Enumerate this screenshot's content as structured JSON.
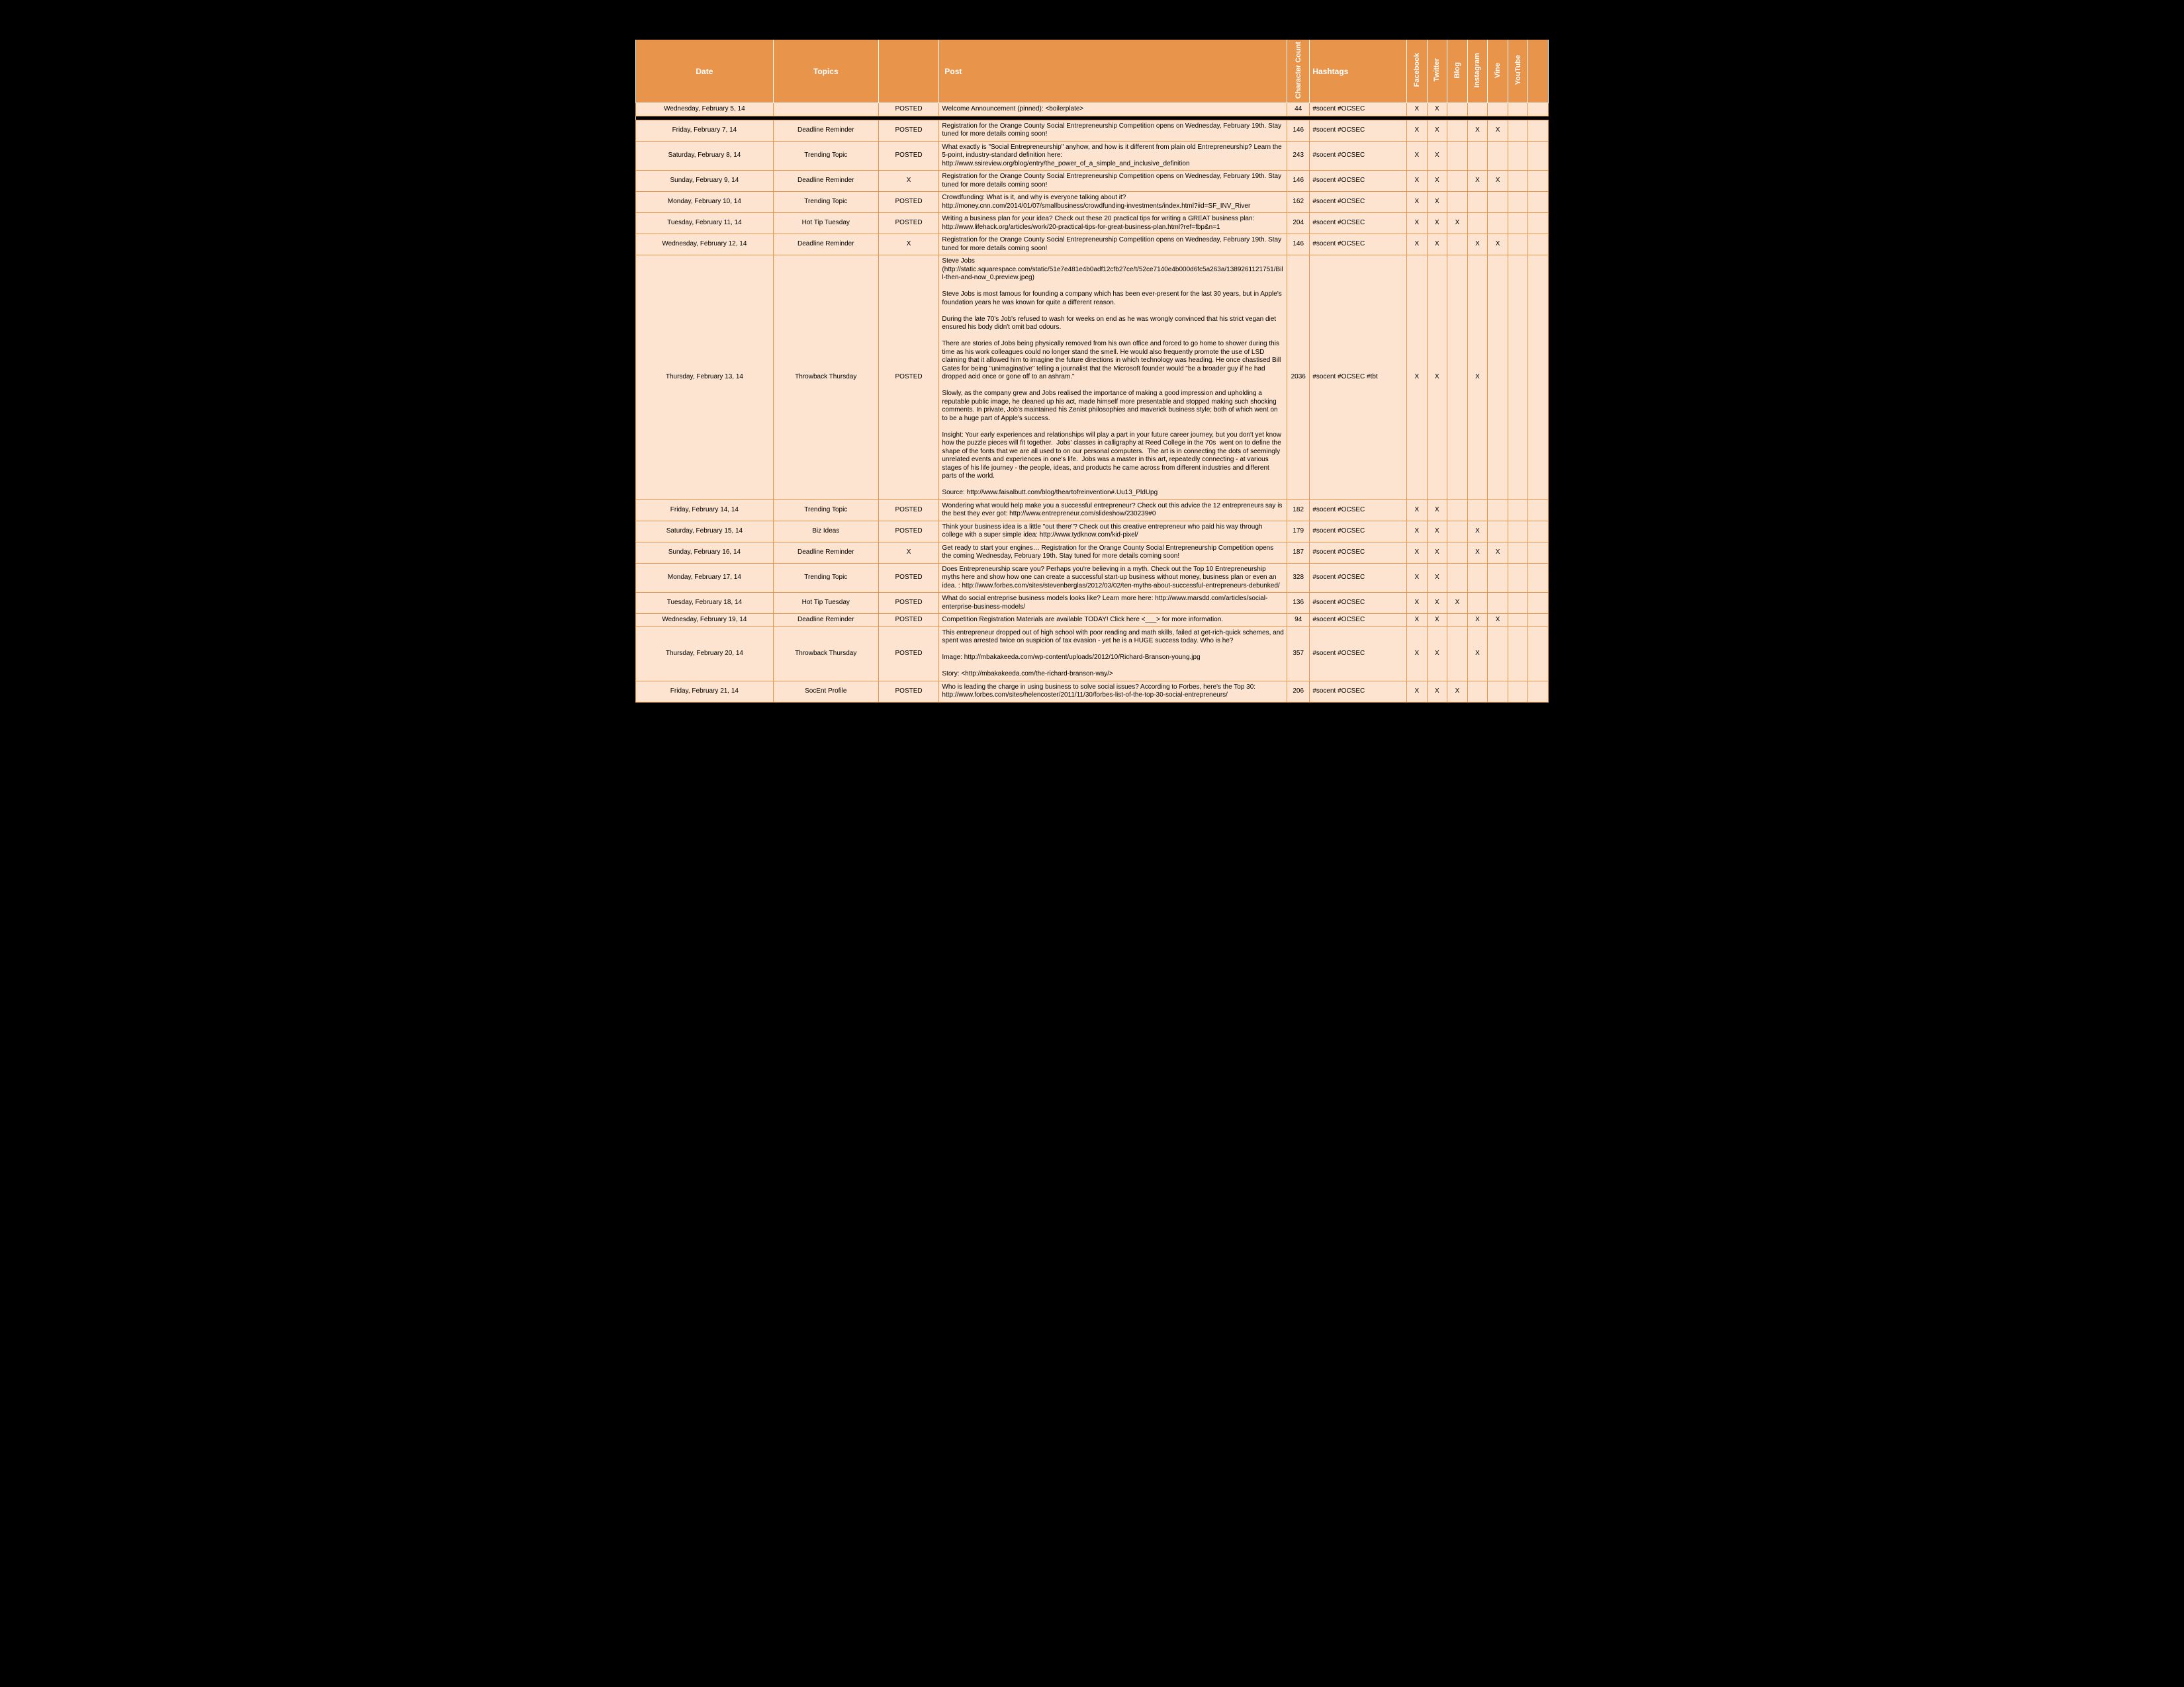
{
  "columns": {
    "date": "Date",
    "topics": "Topics",
    "status": "",
    "post": "Post",
    "cc": "Character Count",
    "hashtags": "Hashtags",
    "channels": [
      "Facebook",
      "Twitter",
      "Blog",
      "Instagram",
      "Vine",
      "YouTube"
    ]
  },
  "rows": [
    {
      "date": "Wednesday, February 5, 14",
      "topic": "",
      "status": "POSTED",
      "post": "Welcome Announcement (pinned): <boilerplate>",
      "cc": "44",
      "hash": "#socent #OCSEC",
      "ch": [
        "X",
        "X",
        "",
        "",
        "",
        ""
      ]
    },
    {
      "sep": true
    },
    {
      "date": "Friday, February 7, 14",
      "topic": "Deadline Reminder",
      "status": "POSTED",
      "post": "Registration for the Orange County Social Entrepreneurship Competition opens on Wednesday, February 19th. Stay tuned for more details coming soon!",
      "cc": "146",
      "hash": "#socent #OCSEC",
      "ch": [
        "X",
        "X",
        "",
        "X",
        "X",
        ""
      ]
    },
    {
      "date": "Saturday, February 8, 14",
      "topic": "Trending Topic",
      "status": "POSTED",
      "post": "What exactly is \"Social Entrepreneurship\" anyhow, and how is it different from plain old Entrepreneurship? Learn the 5-point, industry-standard definition here: http://www.ssireview.org/blog/entry/the_power_of_a_simple_and_inclusive_definition",
      "cc": "243",
      "hash": "#socent #OCSEC",
      "ch": [
        "X",
        "X",
        "",
        "",
        "",
        ""
      ]
    },
    {
      "date": "Sunday, February 9, 14",
      "topic": "Deadline Reminder",
      "status": "X",
      "post": "Registration for the Orange County Social Entrepreneurship Competition opens on Wednesday, February 19th. Stay tuned for more details coming soon!",
      "cc": "146",
      "hash": "#socent #OCSEC",
      "ch": [
        "X",
        "X",
        "",
        "X",
        "X",
        ""
      ]
    },
    {
      "date": "Monday, February 10, 14",
      "topic": "Trending Topic",
      "status": "POSTED",
      "post": "Crowdfunding: What is it, and why is everyone talking about it? http://money.cnn.com/2014/01/07/smallbusiness/crowdfunding-investments/index.html?iid=SF_INV_River",
      "cc": "162",
      "hash": "#socent #OCSEC",
      "ch": [
        "X",
        "X",
        "",
        "",
        "",
        ""
      ]
    },
    {
      "date": "Tuesday, February 11, 14",
      "topic": "Hot Tip Tuesday",
      "status": "POSTED",
      "post": "Writing a business plan for your idea? Check out these 20 practical tips for writing a GREAT business plan: http://www.lifehack.org/articles/work/20-practical-tips-for-great-business-plan.html?ref=fbp&n=1",
      "cc": "204",
      "hash": "#socent #OCSEC",
      "ch": [
        "X",
        "X",
        "X",
        "",
        "",
        ""
      ]
    },
    {
      "date": "Wednesday, February 12, 14",
      "topic": "Deadline Reminder",
      "status": "X",
      "post": "Registration for the Orange County Social Entrepreneurship Competition opens on Wednesday, February 19th. Stay tuned for more details coming soon!",
      "cc": "146",
      "hash": "#socent #OCSEC",
      "ch": [
        "X",
        "X",
        "",
        "X",
        "X",
        ""
      ]
    },
    {
      "date": "Thursday, February 13, 14",
      "topic": "Throwback Thursday",
      "status": "POSTED",
      "post": "Steve Jobs\n(http://static.squarespace.com/static/51e7e481e4b0adf12cfb27ce/t/52ce7140e4b000d6fc5a263a/1389261121751/Bill-then-and-now_0.preview.jpeg)\n\nSteve Jobs is most famous for founding a company which has been ever-present for the last 30 years, but in Apple's foundation years he was known for quite a different reason.\n\nDuring the late 70's Job's refused to wash for weeks on end as he was wrongly convinced that his strict vegan diet ensured his body didn't omit bad odours.\n\nThere are stories of Jobs being physically removed from his own office and forced to go home to shower during this time as his work colleagues could no longer stand the smell. He would also frequently promote the use of LSD claiming that it allowed him to imagine the future directions in which technology was heading. He once chastised Bill Gates for being \"unimaginative\" telling a journalist that the Microsoft founder would \"be a broader guy if he had dropped acid once or gone off to an ashram.\"\n\nSlowly, as the company grew and Jobs realised the importance of making a good impression and upholding a reputable public image, he cleaned up his act, made himself more presentable and stopped making such shocking comments. In private, Job's maintained his Zenist philosophies and maverick business style; both of which went on to be a huge part of Apple's success.\n\nInsight: Your early experiences and relationships will play a part in your future career journey, but you don't yet know how the puzzle pieces will fit together.  Jobs' classes in calligraphy at Reed College in the 70s  went on to define the shape of the fonts that we are all used to on our personal computers.  The art is in connecting the dots of seemingly unrelated events and experiences in one's life.  Jobs was a master in this art, repeatedly connecting - at various stages of his life journey - the people, ideas, and products he came across from different industries and different parts of the world.\n\nSource: http://www.faisalbutt.com/blog/theartofreinvention#.Uu13_PldUpg",
      "cc": "2036",
      "hash": "#socent #OCSEC #tbt",
      "ch": [
        "X",
        "X",
        "",
        "X",
        "",
        ""
      ]
    },
    {
      "date": "Friday, February 14, 14",
      "topic": "Trending Topic",
      "status": "POSTED",
      "post": "Wondering what would help make you a successful entrepreneur? Check out this advice the 12 entrepreneurs say is the best they ever got: http://www.entrepreneur.com/slideshow/230239#0",
      "cc": "182",
      "hash": "#socent #OCSEC",
      "ch": [
        "X",
        "X",
        "",
        "",
        "",
        ""
      ]
    },
    {
      "date": "Saturday, February 15, 14",
      "topic": "Biz Ideas",
      "status": "POSTED",
      "post": "Think your business idea is a little \"out there\"? Check out this creative entrepreneur who paid his way through college with a super simple idea: http://www.tydknow.com/kid-pixel/",
      "cc": "179",
      "hash": "#socent #OCSEC",
      "ch": [
        "X",
        "X",
        "",
        "X",
        "",
        ""
      ]
    },
    {
      "date": "Sunday, February 16, 14",
      "topic": "Deadline Reminder",
      "status": "X",
      "post": "Get ready to start your engines… Registration for the Orange County Social Entrepreneurship Competition opens the coming Wednesday, February 19th. Stay tuned for more details coming soon!",
      "cc": "187",
      "hash": "#socent #OCSEC",
      "ch": [
        "X",
        "X",
        "",
        "X",
        "X",
        ""
      ]
    },
    {
      "date": "Monday, February 17, 14",
      "topic": "Trending Topic",
      "status": "POSTED",
      "post": "Does Entrepreneurship scare you? Perhaps you're believing in a myth. Check out the Top 10 Entrepreneurship myths here and show how one can create a successful start-up business without money, business plan or even an idea. : http://www.forbes.com/sites/stevenberglas/2012/03/02/ten-myths-about-successful-entrepreneurs-debunked/",
      "cc": "328",
      "hash": "#socent #OCSEC",
      "ch": [
        "X",
        "X",
        "",
        "",
        "",
        ""
      ]
    },
    {
      "date": "Tuesday, February 18, 14",
      "topic": "Hot Tip Tuesday",
      "status": "POSTED",
      "post": "What do social entreprise business models looks like? Learn more here: http://www.marsdd.com/articles/social-enterprise-business-models/",
      "cc": "136",
      "hash": "#socent #OCSEC",
      "ch": [
        "X",
        "X",
        "X",
        "",
        "",
        ""
      ]
    },
    {
      "date": "Wednesday, February 19, 14",
      "topic": "Deadline Reminder",
      "status": "POSTED",
      "post": "Competition Registration Materials are available TODAY! Click here <___> for more information.",
      "cc": "94",
      "hash": "#socent #OCSEC",
      "ch": [
        "X",
        "X",
        "",
        "X",
        "X",
        ""
      ]
    },
    {
      "date": "Thursday, February 20, 14",
      "topic": "Throwback Thursday",
      "status": "POSTED",
      "post": "This entrepreneur dropped out of high school with poor reading and math skills, failed at get-rich-quick schemes, and spent was arrested twice on suspicion of tax evasion - yet he is a HUGE success today. Who is he?\n\nImage: http://mbakakeeda.com/wp-content/uploads/2012/10/Richard-Branson-young.jpg\n\nStory: <http://mbakakeeda.com/the-richard-branson-way/>",
      "cc": "357",
      "hash": "#socent #OCSEC",
      "ch": [
        "X",
        "X",
        "",
        "X",
        "",
        ""
      ]
    },
    {
      "date": "Friday, February 21, 14",
      "topic": "SocEnt Profile",
      "status": "POSTED",
      "post": "Who is leading the charge in using business to solve social issues? According to Forbes, here's the Top 30: http://www.forbes.com/sites/helencoster/2011/11/30/forbes-list-of-the-top-30-social-entrepreneurs/",
      "cc": "206",
      "hash": "#socent #OCSEC",
      "ch": [
        "X",
        "X",
        "X",
        "",
        "",
        ""
      ]
    }
  ]
}
